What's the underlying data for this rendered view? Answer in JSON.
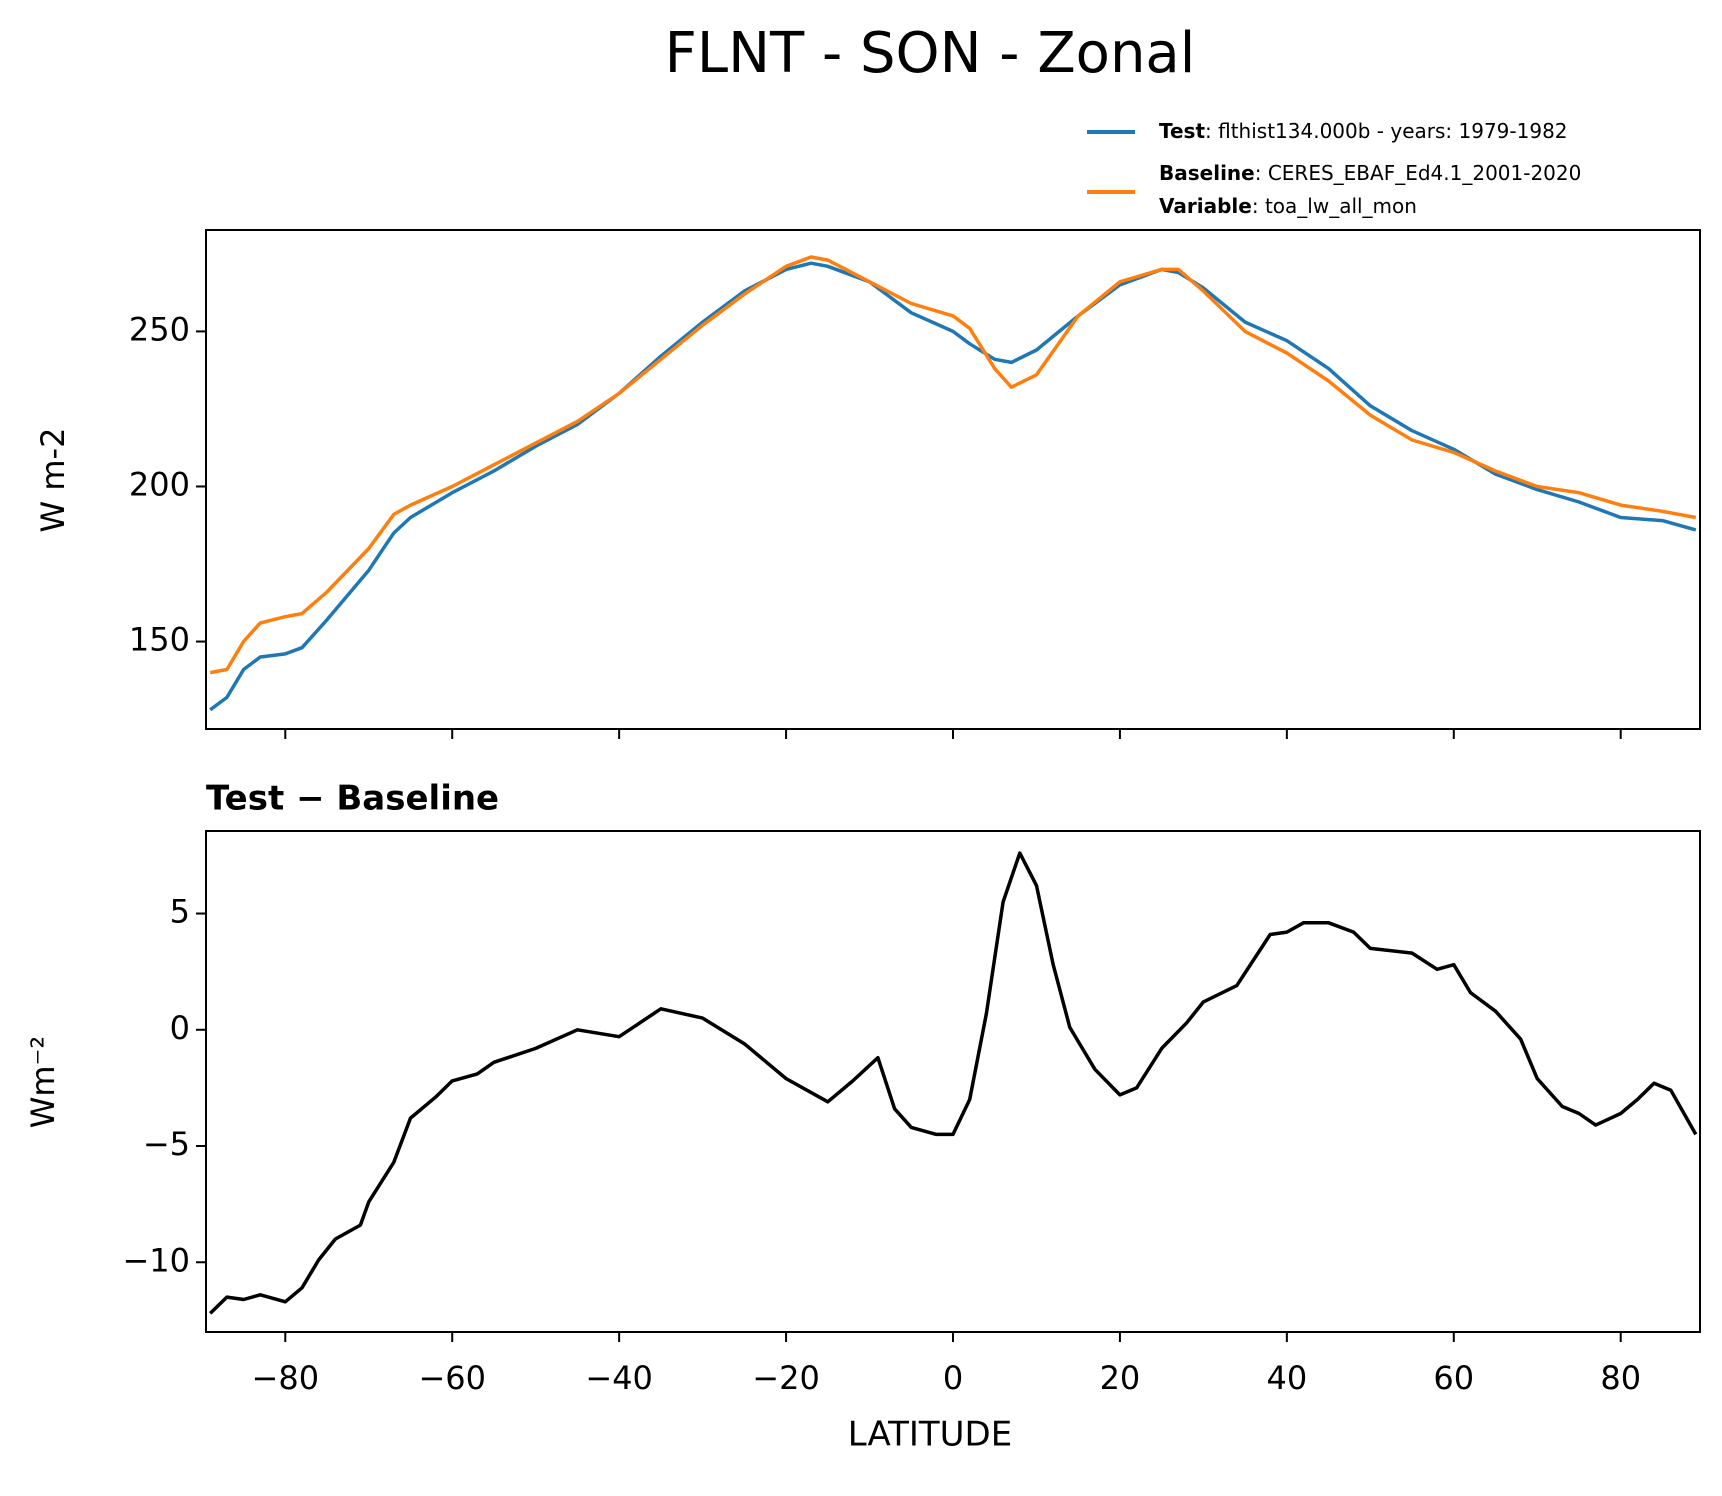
{
  "chart_data": [
    {
      "type": "line",
      "title": "FLNT - SON - Zonal",
      "ylabel": "W m-2",
      "x": [
        -89,
        -87,
        -85,
        -83,
        -80,
        -78,
        -75,
        -70,
        -67,
        -65,
        -60,
        -55,
        -50,
        -45,
        -40,
        -35,
        -30,
        -25,
        -20,
        -17,
        -15,
        -10,
        -5,
        0,
        2,
        5,
        7,
        10,
        15,
        20,
        25,
        27,
        30,
        35,
        40,
        45,
        50,
        55,
        60,
        65,
        70,
        75,
        80,
        85,
        89
      ],
      "series": [
        {
          "name": "Test",
          "label": ": flthist134.000b - years: 1979-1982",
          "color": "#1f77b4",
          "values": [
            128,
            132,
            141,
            145,
            146,
            148,
            157,
            173,
            185,
            190,
            198,
            205,
            213,
            220,
            230,
            242,
            253,
            263,
            270,
            272,
            271,
            266,
            256,
            250,
            246,
            241,
            240,
            244,
            255,
            265,
            270,
            269,
            264,
            253,
            247,
            238,
            226,
            218,
            212,
            204,
            199,
            195,
            190,
            189,
            186
          ]
        },
        {
          "name": "Baseline",
          "label": ": CERES_EBAF_Ed4.1_2001-2020",
          "color": "#ff7f0e",
          "values": [
            140,
            141,
            150,
            156,
            158,
            159,
            166,
            180,
            191,
            194,
            200,
            207,
            214,
            221,
            230,
            241,
            252,
            262,
            271,
            274,
            273,
            266,
            259,
            255,
            251,
            238,
            232,
            236,
            255,
            266,
            270,
            270,
            263,
            250,
            243,
            234,
            223,
            215,
            211,
            205,
            200,
            198,
            194,
            192,
            190
          ]
        }
      ],
      "legend_notes": [
        {
          "name": "Variable",
          "label": ": toa_lw_all_mon"
        }
      ],
      "xlim": [
        -89.5,
        89.5
      ],
      "xticks": [
        -80,
        -60,
        -40,
        -20,
        0,
        20,
        40,
        60,
        80
      ],
      "ylim": [
        121.8,
        282.7
      ],
      "yticks": [
        150,
        200,
        250
      ]
    },
    {
      "type": "line",
      "title": "Test − Baseline",
      "ylabel": "Wm⁻²",
      "xlabel": "LATITUDE",
      "x": [
        -89,
        -87,
        -85,
        -83,
        -80,
        -78,
        -76,
        -74,
        -71,
        -70,
        -67,
        -65,
        -62,
        -60,
        -57,
        -55,
        -50,
        -45,
        -40,
        -35,
        -30,
        -25,
        -20,
        -15,
        -12,
        -9,
        -7,
        -5,
        -2,
        0,
        2,
        4,
        6,
        8,
        10,
        12,
        14,
        17,
        20,
        22,
        25,
        28,
        30,
        34,
        36,
        38,
        40,
        42,
        45,
        48,
        50,
        55,
        58,
        60,
        62,
        65,
        68,
        70,
        73,
        75,
        77,
        80,
        82,
        84,
        86,
        89
      ],
      "series": [
        {
          "name": "Test − Baseline",
          "color": "#000000",
          "values": [
            -12.2,
            -11.5,
            -11.6,
            -11.4,
            -11.7,
            -11.1,
            -9.9,
            -9.0,
            -8.4,
            -7.4,
            -5.7,
            -3.8,
            -2.9,
            -2.2,
            -1.9,
            -1.4,
            -0.8,
            0,
            -0.3,
            0.9,
            0.5,
            -0.6,
            -2.1,
            -3.1,
            -2.2,
            -1.2,
            -3.4,
            -4.2,
            -4.5,
            -4.5,
            -3.0,
            0.7,
            5.5,
            7.6,
            6.2,
            2.8,
            0.1,
            -1.7,
            -2.8,
            -2.5,
            -0.8,
            0.3,
            1.2,
            1.9,
            3.0,
            4.1,
            4.2,
            4.6,
            4.6,
            4.2,
            3.5,
            3.3,
            2.6,
            2.8,
            1.6,
            0.8,
            -0.4,
            -2.1,
            -3.3,
            -3.6,
            -4.1,
            -3.6,
            -3.0,
            -2.3,
            -2.6,
            -4.5
          ]
        }
      ],
      "xlim": [
        -89.5,
        89.5
      ],
      "xticks": [
        {
          "value": -80,
          "label": "−80"
        },
        {
          "value": -60,
          "label": "−60"
        },
        {
          "value": -40,
          "label": "−40"
        },
        {
          "value": -20,
          "label": "−20"
        },
        0,
        20,
        40,
        60,
        80
      ],
      "ylim": [
        -13.0,
        8.55
      ],
      "yticks": [
        {
          "value": -10,
          "label": "−10"
        },
        {
          "value": -5,
          "label": "−5"
        },
        0,
        5
      ]
    }
  ]
}
